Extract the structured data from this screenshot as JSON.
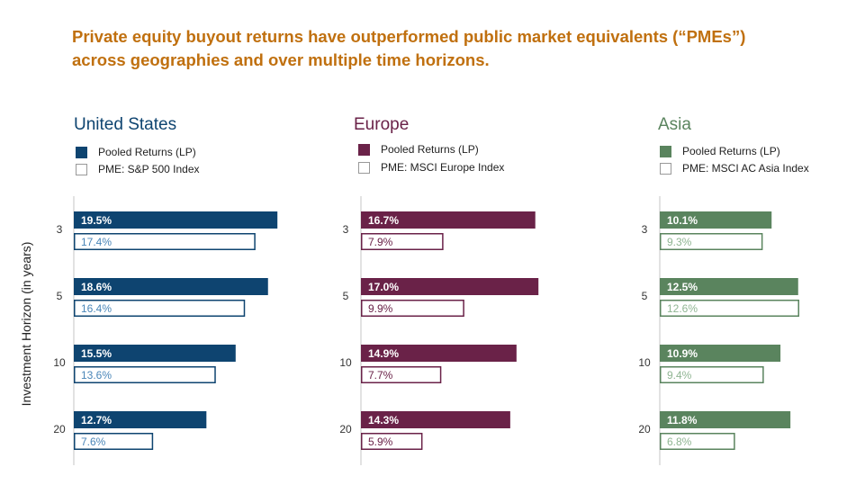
{
  "title": "Private equity buyout returns have outperformed public market equivalents (“PMEs”) across geographies and over multiple time horizons.",
  "y_axis_title": "Investment Horizon (in years)",
  "colors": {
    "title": "#c0700f",
    "us": "#0e4470",
    "us_pme_text": "#4a86b8",
    "europe": "#6a2248",
    "europe_pme_text": "#6a2248",
    "asia": "#5a845e",
    "asia_pme_text": "#8fb592",
    "axis": "#d9d9d9"
  },
  "chart_data": [
    {
      "type": "bar",
      "orientation": "horizontal",
      "title": "United States",
      "categories": [
        "3",
        "5",
        "10",
        "20"
      ],
      "ylabel": "Investment Horizon (in years)",
      "legend": [
        "Pooled Returns (LP)",
        "PME: S&P 500 Index"
      ],
      "series": [
        {
          "name": "Pooled Returns (LP)",
          "values": [
            19.5,
            18.6,
            15.5,
            12.7
          ],
          "labels": [
            "19.5%",
            "18.6%",
            "15.5%",
            "12.7%"
          ]
        },
        {
          "name": "PME: S&P 500 Index",
          "values": [
            17.4,
            16.4,
            13.6,
            7.6
          ],
          "labels": [
            "17.4%",
            "16.4%",
            "13.6%",
            "7.6%"
          ]
        }
      ],
      "xlim": [
        0,
        20
      ]
    },
    {
      "type": "bar",
      "orientation": "horizontal",
      "title": "Europe",
      "categories": [
        "3",
        "5",
        "10",
        "20"
      ],
      "legend": [
        "Pooled Returns (LP)",
        "PME: MSCI Europe Index"
      ],
      "series": [
        {
          "name": "Pooled Returns (LP)",
          "values": [
            16.7,
            17.0,
            14.9,
            14.3
          ],
          "labels": [
            "16.7%",
            "17.0%",
            "14.9%",
            "14.3%"
          ]
        },
        {
          "name": "PME: MSCI Europe Index",
          "values": [
            7.9,
            9.9,
            7.7,
            5.9
          ],
          "labels": [
            "7.9%",
            "9.9%",
            "7.7%",
            "5.9%"
          ]
        }
      ],
      "xlim": [
        0,
        20
      ]
    },
    {
      "type": "bar",
      "orientation": "horizontal",
      "title": "Asia",
      "categories": [
        "3",
        "5",
        "10",
        "20"
      ],
      "legend": [
        "Pooled Returns (LP)",
        "PME: MSCI AC Asia Index"
      ],
      "series": [
        {
          "name": "Pooled Returns (LP)",
          "values": [
            10.1,
            12.5,
            10.9,
            11.8
          ],
          "labels": [
            "10.1%",
            "12.5%",
            "10.9%",
            "11.8%"
          ]
        },
        {
          "name": "PME: MSCI AC Asia Index",
          "values": [
            9.3,
            12.6,
            9.4,
            6.8
          ],
          "labels": [
            "9.3%",
            "12.6%",
            "9.4%",
            "6.8%"
          ]
        }
      ],
      "xlim": [
        0,
        20
      ]
    }
  ]
}
